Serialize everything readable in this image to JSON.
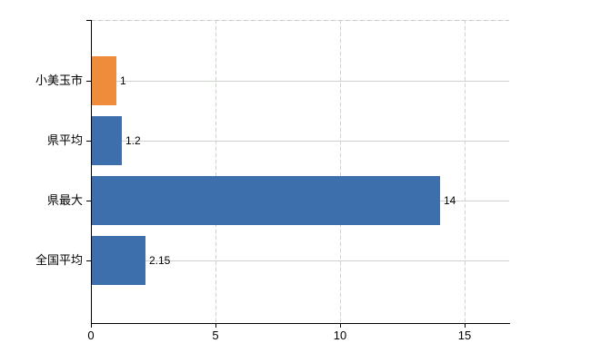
{
  "page": {
    "background_color": "#ffffff",
    "title": ""
  },
  "chart_data": {
    "type": "bar",
    "orientation": "horizontal",
    "title": "",
    "xlabel": "",
    "ylabel": "",
    "categories": [
      "小美玉市",
      "県平均",
      "県最大",
      "全国平均"
    ],
    "values": [
      1,
      1.2,
      14,
      2.15
    ],
    "value_labels": [
      "1",
      "1.2",
      "14",
      "2.15"
    ],
    "bar_colors": [
      "#ee8c3b",
      "#3d6fad",
      "#3d6fad",
      "#3d6fad"
    ],
    "highlight_index": 0,
    "x_ticks": [
      "0",
      "5",
      "10",
      "15"
    ],
    "x_tick_values": [
      0,
      5,
      10,
      15
    ],
    "xlim": [
      0,
      16.8
    ],
    "grid": true,
    "legend_position": "none",
    "axis_color": "#000000",
    "gridline_color": "#ccd3cb",
    "top_border_color": "#c9c9c9",
    "label_color": "#000000"
  }
}
